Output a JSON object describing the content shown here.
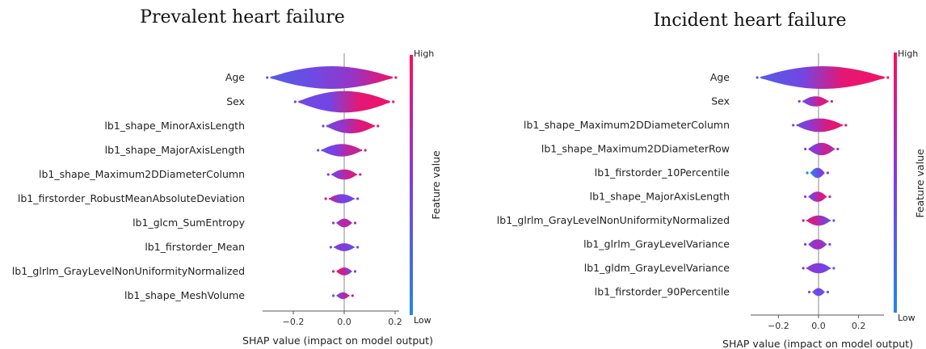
{
  "legend": {
    "title": "Feature value",
    "high": "High",
    "low": "Low"
  },
  "colors": {
    "low": "#1e88e5",
    "mid": "#7b3fe4",
    "high": "#ff0d57"
  },
  "chart_data": [
    {
      "type": "violin",
      "title": "Prevalent heart failure",
      "xlabel": "SHAP value (impact on model output)",
      "xlim": [
        -0.31,
        0.22
      ],
      "xticks": [
        -0.2,
        0.0,
        0.2
      ],
      "xtick_labels": [
        "−0.2",
        "0.0",
        "0.2"
      ],
      "features": [
        {
          "name": "Age",
          "min": -0.29,
          "max": 0.19,
          "w": 1.0,
          "c": [
            0.3,
            0.42,
            0.6,
            0.95
          ]
        },
        {
          "name": "Sex",
          "min": -0.18,
          "max": 0.18,
          "w": 0.95,
          "c": [
            0.45,
            0.45,
            0.9,
            0.92
          ]
        },
        {
          "name": "lb1_shape_MinorAxisLength",
          "min": -0.07,
          "max": 0.12,
          "w": 0.65,
          "c": [
            0.45,
            0.6,
            0.85,
            0.95
          ]
        },
        {
          "name": "lb1_shape_MajorAxisLength",
          "min": -0.09,
          "max": 0.07,
          "w": 0.55,
          "c": [
            0.4,
            0.5,
            0.75,
            0.8
          ]
        },
        {
          "name": "lb1_shape_Maximum2DDiameterColumn",
          "min": -0.05,
          "max": 0.05,
          "w": 0.45,
          "c": [
            0.45,
            0.6,
            0.8,
            0.85
          ]
        },
        {
          "name": "lb1_firstorder_RobustMeanAbsoluteDeviation",
          "min": -0.06,
          "max": 0.04,
          "w": 0.4,
          "c": [
            0.85,
            0.55,
            0.45,
            0.45
          ]
        },
        {
          "name": "lb1_glcm_SumEntropy",
          "min": -0.03,
          "max": 0.03,
          "w": 0.38,
          "c": [
            0.5,
            0.7,
            0.75,
            0.7
          ]
        },
        {
          "name": "lb1_firstorder_Mean",
          "min": -0.04,
          "max": 0.04,
          "w": 0.35,
          "c": [
            0.35,
            0.55,
            0.5,
            0.35
          ]
        },
        {
          "name": "lb1_glrlm_GrayLevelNonUniformityNormalized",
          "min": -0.03,
          "max": 0.03,
          "w": 0.35,
          "c": [
            0.9,
            0.85,
            0.65,
            0.5
          ]
        },
        {
          "name": "lb1_shape_MeshVolume",
          "min": -0.03,
          "max": 0.02,
          "w": 0.3,
          "c": [
            0.4,
            0.6,
            0.75,
            0.85
          ]
        }
      ]
    },
    {
      "type": "violin",
      "title": "Incident heart failure",
      "xlabel": "SHAP value (impact on model output)",
      "xlim": [
        -0.32,
        0.37
      ],
      "xticks": [
        -0.2,
        0.0,
        0.2
      ],
      "xtick_labels": [
        "−0.2",
        "0.0",
        "0.2"
      ],
      "features": [
        {
          "name": "Age",
          "min": -0.29,
          "max": 0.33,
          "w": 1.0,
          "c": [
            0.3,
            0.45,
            0.9,
            0.95
          ]
        },
        {
          "name": "Sex",
          "min": -0.08,
          "max": 0.05,
          "w": 0.45,
          "c": [
            0.4,
            0.6,
            0.85,
            0.85
          ]
        },
        {
          "name": "lb1_shape_Maximum2DDiameterColumn",
          "min": -0.11,
          "max": 0.12,
          "w": 0.6,
          "c": [
            0.4,
            0.6,
            0.85,
            0.95
          ]
        },
        {
          "name": "lb1_shape_Maximum2DDiameterRow",
          "min": -0.05,
          "max": 0.08,
          "w": 0.55,
          "c": [
            0.45,
            0.6,
            0.8,
            0.7
          ]
        },
        {
          "name": "lb1_firstorder_10Percentile",
          "min": -0.04,
          "max": 0.03,
          "w": 0.45,
          "c": [
            0.05,
            0.25,
            0.45,
            0.55
          ]
        },
        {
          "name": "lb1_shape_MajorAxisLength",
          "min": -0.05,
          "max": 0.04,
          "w": 0.45,
          "c": [
            0.35,
            0.6,
            0.85,
            0.85
          ]
        },
        {
          "name": "lb1_glrlm_GrayLevelNonUniformityNormalized",
          "min": -0.06,
          "max": 0.06,
          "w": 0.45,
          "c": [
            0.85,
            0.8,
            0.6,
            0.35
          ]
        },
        {
          "name": "lb1_glrlm_GrayLevelVariance",
          "min": -0.05,
          "max": 0.04,
          "w": 0.45,
          "c": [
            0.45,
            0.6,
            0.65,
            0.45
          ]
        },
        {
          "name": "lb1_gldm_GrayLevelVariance",
          "min": -0.06,
          "max": 0.06,
          "w": 0.45,
          "c": [
            0.5,
            0.55,
            0.5,
            0.4
          ]
        },
        {
          "name": "lb1_firstorder_90Percentile",
          "min": -0.03,
          "max": 0.03,
          "w": 0.35,
          "c": [
            0.35,
            0.45,
            0.4,
            0.3
          ]
        }
      ]
    }
  ]
}
